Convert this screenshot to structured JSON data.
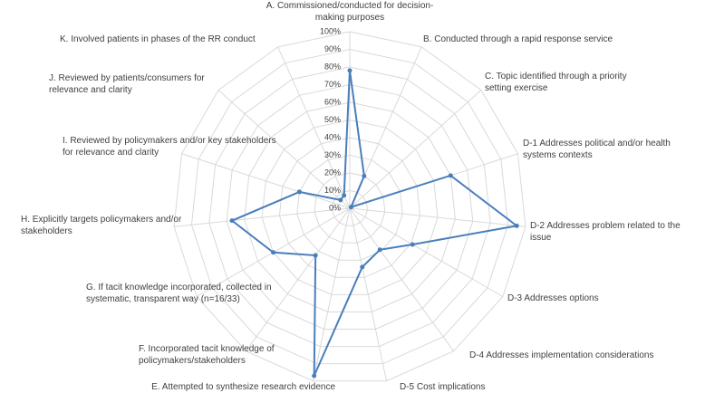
{
  "chart_data": {
    "type": "radar",
    "categories": [
      "A. Commissioned/conducted for decision-making purposes",
      "B. Conducted through a rapid response service",
      "C. Topic identified through a priority setting exercise",
      "D-1 Addresses political and/or health systems contexts",
      "D-2 Addresses problem related to the issue",
      "D-3 Addresses options",
      "D-4 Addresses implementation considerations",
      "D-5 Cost implications",
      "E. Attempted to synthesize research evidence",
      "F. Incorporated tacit knowledge of policymakers/stakeholders",
      "G. If tacit knowledge incorporated,  collected in systematic, transparent way (n=16/33)",
      "H. Explicitly targets policymakers and/or stakeholders",
      "I. Reviewed by policymakers and/or key stakeholders for relevance and clarity",
      "J. Reviewed by patients/consumers for relevance and clarity",
      "K. Involved patients in phases of the RR conduct"
    ],
    "values": [
      78,
      20,
      1,
      60,
      95,
      41,
      29,
      34,
      97,
      33,
      50,
      67,
      30,
      7,
      8
    ],
    "color": "#4a7ebb",
    "ylim": [
      0,
      100
    ],
    "yticks": [
      {
        "value": 0,
        "label": "0%"
      },
      {
        "value": 10,
        "label": "10%"
      },
      {
        "value": 20,
        "label": "20%"
      },
      {
        "value": 30,
        "label": "30%"
      },
      {
        "value": 40,
        "label": "40%"
      },
      {
        "value": 50,
        "label": "50%"
      },
      {
        "value": 60,
        "label": "60%"
      },
      {
        "value": 70,
        "label": "70%"
      },
      {
        "value": 80,
        "label": "80%"
      },
      {
        "value": 90,
        "label": "90%"
      },
      {
        "value": 100,
        "label": "100%"
      }
    ],
    "grid": true
  }
}
